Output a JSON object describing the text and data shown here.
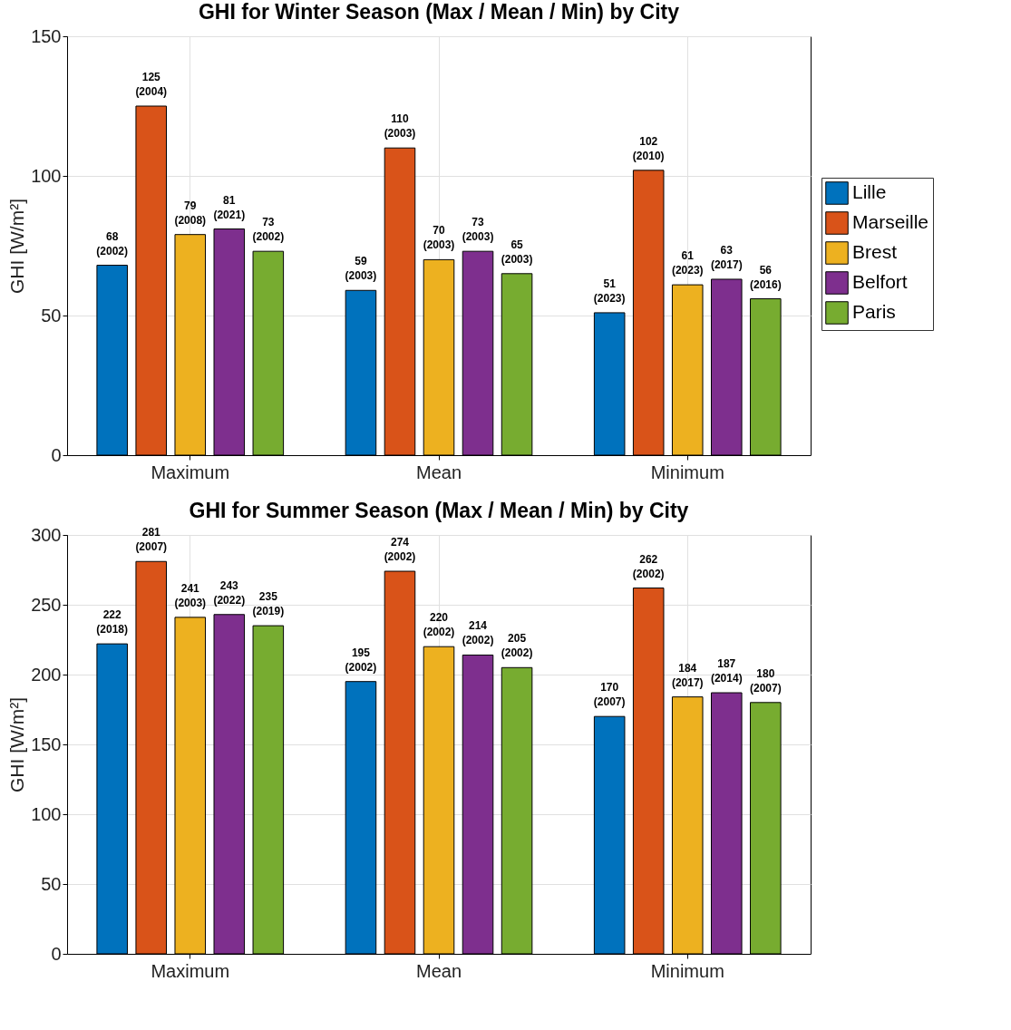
{
  "chart_data": [
    {
      "type": "bar",
      "title": "GHI for Winter Season (Max / Mean / Min) by City",
      "ylabel": "GHI [W/m²]",
      "categories": [
        "Maximum",
        "Mean",
        "Minimum"
      ],
      "ylim": [
        0,
        150
      ],
      "yticks": [
        0,
        50,
        100,
        150
      ],
      "grid": true,
      "legend": "right",
      "series": [
        {
          "name": "Lille",
          "color": "#0072bd",
          "values": [
            68,
            59,
            51
          ],
          "value_labels": [
            "68\n(2002)",
            "59\n(2003)",
            "51\n(2023)"
          ]
        },
        {
          "name": "Marseille",
          "color": "#d95319",
          "values": [
            125,
            110,
            102
          ],
          "value_labels": [
            "125\n(2004)",
            "110\n(2003)",
            "102\n(2010)"
          ]
        },
        {
          "name": "Brest",
          "color": "#edb120",
          "values": [
            79,
            70,
            61
          ],
          "value_labels": [
            "79\n(2008)",
            "70\n(2003)",
            "61\n(2023)"
          ]
        },
        {
          "name": "Belfort",
          "color": "#7e2f8e",
          "values": [
            81,
            73,
            63
          ],
          "value_labels": [
            "81\n(2021)",
            "73\n(2003)",
            "63\n(2017)"
          ]
        },
        {
          "name": "Paris",
          "color": "#77ac30",
          "values": [
            73,
            65,
            56
          ],
          "value_labels": [
            "73\n(2002)",
            "65\n(2003)",
            "56\n(2016)"
          ]
        }
      ]
    },
    {
      "type": "bar",
      "title": "GHI for Summer Season (Max / Mean / Min) by City",
      "ylabel": "GHI [W/m²]",
      "categories": [
        "Maximum",
        "Mean",
        "Minimum"
      ],
      "ylim": [
        0,
        300
      ],
      "yticks": [
        0,
        50,
        100,
        150,
        200,
        250,
        300
      ],
      "grid": true,
      "legend": "right",
      "series": [
        {
          "name": "Lille",
          "color": "#0072bd",
          "values": [
            222,
            195,
            170
          ],
          "value_labels": [
            "222\n(2018)",
            "195\n(2002)",
            "170\n(2007)"
          ]
        },
        {
          "name": "Marseille",
          "color": "#d95319",
          "values": [
            281,
            274,
            262
          ],
          "value_labels": [
            "281\n(2007)",
            "274\n(2002)",
            "262\n(2002)"
          ]
        },
        {
          "name": "Brest",
          "color": "#edb120",
          "values": [
            241,
            220,
            184
          ],
          "value_labels": [
            "241\n(2003)",
            "220\n(2002)",
            "184\n(2017)"
          ]
        },
        {
          "name": "Belfort",
          "color": "#7e2f8e",
          "values": [
            243,
            214,
            187
          ],
          "value_labels": [
            "243\n(2022)",
            "214\n(2002)",
            "187\n(2014)"
          ]
        },
        {
          "name": "Paris",
          "color": "#77ac30",
          "values": [
            235,
            205,
            180
          ],
          "value_labels": [
            "235\n(2019)",
            "205\n(2002)",
            "180\n(2007)"
          ]
        }
      ]
    }
  ]
}
